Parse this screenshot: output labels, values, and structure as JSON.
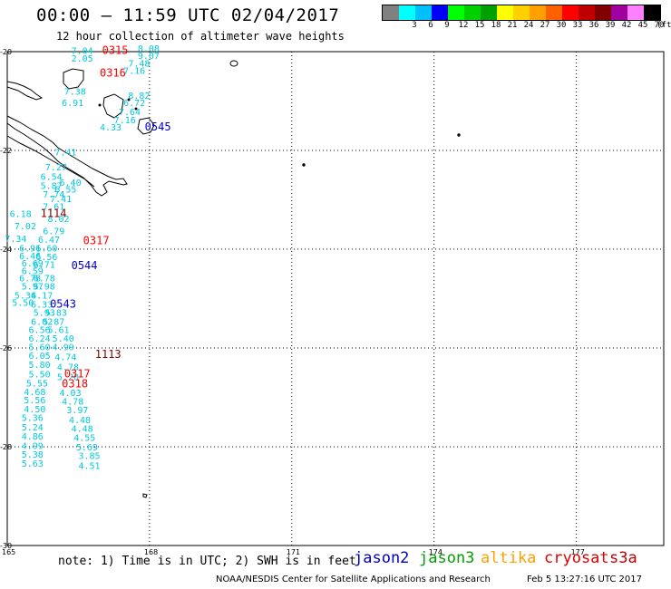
{
  "header": {
    "title": "00:00 – 11:59 UTC 02/04/2017",
    "subtitle": "12 hour collection of altimeter wave heights"
  },
  "scale": {
    "unit": "(ft)",
    "bins": [
      {
        "label": "",
        "color": "#808080"
      },
      {
        "label": "3",
        "color": "#00ffff"
      },
      {
        "label": "6",
        "color": "#00bfff"
      },
      {
        "label": "9",
        "color": "#0000ff"
      },
      {
        "label": "12",
        "color": "#00ff00"
      },
      {
        "label": "15",
        "color": "#00d000"
      },
      {
        "label": "18",
        "color": "#00a000"
      },
      {
        "label": "21",
        "color": "#ffff00"
      },
      {
        "label": "24",
        "color": "#ffd000"
      },
      {
        "label": "27",
        "color": "#ffa000"
      },
      {
        "label": "30",
        "color": "#ff6000"
      },
      {
        "label": "33",
        "color": "#ff0000"
      },
      {
        "label": "36",
        "color": "#c00000"
      },
      {
        "label": "39",
        "color": "#800000"
      },
      {
        "label": "42",
        "color": "#a000a0"
      },
      {
        "label": "45",
        "color": "#ff80ff"
      },
      {
        "label": "70",
        "color": "#000000"
      }
    ]
  },
  "axes": {
    "lon_labels": [
      "165",
      "168",
      "171",
      "174",
      "177"
    ],
    "lat_labels": [
      "-20",
      "-22",
      "-24",
      "-26",
      "-28",
      "-30"
    ]
  },
  "observations": [
    {
      "v": "7.04",
      "lon": 166.35,
      "lat": -20.05
    },
    {
      "v": "8.08",
      "lon": 167.75,
      "lat": -20.0
    },
    {
      "v": "9.07",
      "lon": 167.75,
      "lat": -20.15
    },
    {
      "v": "2.05",
      "lon": 166.35,
      "lat": -20.2
    },
    {
      "v": "7.48",
      "lon": 167.55,
      "lat": -20.3
    },
    {
      "v": "7.16",
      "lon": 167.45,
      "lat": -20.45
    },
    {
      "v": "7.38",
      "lon": 166.2,
      "lat": -20.87
    },
    {
      "v": "8.82",
      "lon": 167.55,
      "lat": -20.95
    },
    {
      "v": "6.91",
      "lon": 166.15,
      "lat": -21.1
    },
    {
      "v": "6.72",
      "lon": 167.45,
      "lat": -21.1
    },
    {
      "v": "7.64",
      "lon": 167.35,
      "lat": -21.28
    },
    {
      "v": "7.16",
      "lon": 167.25,
      "lat": -21.45
    },
    {
      "v": "4.33",
      "lon": 166.95,
      "lat": -21.6
    },
    {
      "v": "7.41",
      "lon": 166.0,
      "lat": -22.1
    },
    {
      "v": "7.27",
      "lon": 165.8,
      "lat": -22.4
    },
    {
      "v": "6.54",
      "lon": 165.7,
      "lat": -22.6
    },
    {
      "v": "6.40",
      "lon": 166.1,
      "lat": -22.72
    },
    {
      "v": "5.87",
      "lon": 165.7,
      "lat": -22.78
    },
    {
      "v": "6.55",
      "lon": 166.0,
      "lat": -22.85
    },
    {
      "v": "7.74",
      "lon": 165.75,
      "lat": -22.95
    },
    {
      "v": "7.41",
      "lon": 165.9,
      "lat": -23.05
    },
    {
      "v": "7.61",
      "lon": 165.75,
      "lat": -23.2
    },
    {
      "v": "6.18",
      "lon": 165.05,
      "lat": -23.35
    },
    {
      "v": "8.02",
      "lon": 165.85,
      "lat": -23.45
    },
    {
      "v": "7.02",
      "lon": 165.15,
      "lat": -23.6
    },
    {
      "v": "6.79",
      "lon": 165.75,
      "lat": -23.7
    },
    {
      "v": "7.34",
      "lon": 164.95,
      "lat": -23.85
    },
    {
      "v": "6.47",
      "lon": 165.65,
      "lat": -23.87
    },
    {
      "v": "6.91",
      "lon": 165.25,
      "lat": -24.05
    },
    {
      "v": "6.60",
      "lon": 165.6,
      "lat": -24.05
    },
    {
      "v": "6.46",
      "lon": 165.25,
      "lat": -24.2
    },
    {
      "v": "6.56",
      "lon": 165.6,
      "lat": -24.22
    },
    {
      "v": "6.69",
      "lon": 165.3,
      "lat": -24.35
    },
    {
      "v": "6.71",
      "lon": 165.55,
      "lat": -24.38
    },
    {
      "v": "6.59",
      "lon": 165.3,
      "lat": -24.5
    },
    {
      "v": "6.78",
      "lon": 165.25,
      "lat": -24.65
    },
    {
      "v": "6.78",
      "lon": 165.55,
      "lat": -24.65
    },
    {
      "v": "5.97",
      "lon": 165.3,
      "lat": -24.82
    },
    {
      "v": "5.98",
      "lon": 165.55,
      "lat": -24.82
    },
    {
      "v": "5.34",
      "lon": 165.15,
      "lat": -25.0
    },
    {
      "v": "6.17",
      "lon": 165.5,
      "lat": -25.0
    },
    {
      "v": "5.50",
      "lon": 165.1,
      "lat": -25.15
    },
    {
      "v": "6.33",
      "lon": 165.5,
      "lat": -25.18
    },
    {
      "v": "5.93",
      "lon": 165.55,
      "lat": -25.35
    },
    {
      "v": "5.83",
      "lon": 165.8,
      "lat": -25.35
    },
    {
      "v": "6.02",
      "lon": 165.5,
      "lat": -25.53
    },
    {
      "v": "5.87",
      "lon": 165.75,
      "lat": -25.53
    },
    {
      "v": "6.56",
      "lon": 165.45,
      "lat": -25.7
    },
    {
      "v": "5.61",
      "lon": 165.85,
      "lat": -25.7
    },
    {
      "v": "6.24",
      "lon": 165.45,
      "lat": -25.87
    },
    {
      "v": "5.40",
      "lon": 165.95,
      "lat": -25.87
    },
    {
      "v": "5.60",
      "lon": 165.45,
      "lat": -26.05
    },
    {
      "v": "4.99",
      "lon": 165.95,
      "lat": -26.05
    },
    {
      "v": "6.05",
      "lon": 165.45,
      "lat": -26.22
    },
    {
      "v": "4.74",
      "lon": 166.0,
      "lat": -26.25
    },
    {
      "v": "5.80",
      "lon": 165.45,
      "lat": -26.4
    },
    {
      "v": "4.78",
      "lon": 166.05,
      "lat": -26.45
    },
    {
      "v": "5.50",
      "lon": 165.45,
      "lat": -26.6
    },
    {
      "v": "5.20",
      "lon": 166.05,
      "lat": -26.65
    },
    {
      "v": "5.55",
      "lon": 165.4,
      "lat": -26.78
    },
    {
      "v": "4.68",
      "lon": 165.35,
      "lat": -26.95
    },
    {
      "v": "4.03",
      "lon": 166.1,
      "lat": -26.97
    },
    {
      "v": "5.56",
      "lon": 165.35,
      "lat": -27.12
    },
    {
      "v": "4.78",
      "lon": 166.15,
      "lat": -27.15
    },
    {
      "v": "4.50",
      "lon": 165.35,
      "lat": -27.3
    },
    {
      "v": "3.97",
      "lon": 166.25,
      "lat": -27.32
    },
    {
      "v": "5.36",
      "lon": 165.3,
      "lat": -27.48
    },
    {
      "v": "4.48",
      "lon": 166.3,
      "lat": -27.52
    },
    {
      "v": "5.24",
      "lon": 165.3,
      "lat": -27.67
    },
    {
      "v": "4.48",
      "lon": 166.35,
      "lat": -27.7
    },
    {
      "v": "4.86",
      "lon": 165.3,
      "lat": -27.85
    },
    {
      "v": "4.55",
      "lon": 166.4,
      "lat": -27.88
    },
    {
      "v": "4.99",
      "lon": 165.3,
      "lat": -28.05
    },
    {
      "v": "5.69",
      "lon": 166.45,
      "lat": -28.07
    },
    {
      "v": "5.38",
      "lon": 165.3,
      "lat": -28.22
    },
    {
      "v": "3.85",
      "lon": 166.5,
      "lat": -28.25
    },
    {
      "v": "5.63",
      "lon": 165.3,
      "lat": -28.4
    },
    {
      "v": "4.51",
      "lon": 166.5,
      "lat": -28.45
    }
  ],
  "passes": [
    {
      "time": "0315",
      "lon": 167.0,
      "lat": -20.05,
      "color": "#ff0000"
    },
    {
      "time": "0316",
      "lon": 166.95,
      "lat": -20.5,
      "color": "#ff0000"
    },
    {
      "time": "0545",
      "lon": 167.9,
      "lat": -21.6,
      "color": "#0000d0"
    },
    {
      "time": "1114",
      "lon": 165.7,
      "lat": -23.35,
      "color": "#800000"
    },
    {
      "time": "0317",
      "lon": 166.6,
      "lat": -23.9,
      "color": "#ff0000"
    },
    {
      "time": "0544",
      "lon": 166.35,
      "lat": -24.4,
      "color": "#0000d0"
    },
    {
      "time": "0543",
      "lon": 165.9,
      "lat": -25.18,
      "color": "#0000d0"
    },
    {
      "time": "1113",
      "lon": 166.85,
      "lat": -26.2,
      "color": "#800000"
    },
    {
      "time": "0317",
      "lon": 166.2,
      "lat": -26.6,
      "color": "#ff0000"
    },
    {
      "time": "0318",
      "lon": 166.15,
      "lat": -26.8,
      "color": "#ff0000"
    }
  ],
  "label_color": "#00c8e0",
  "footer": {
    "note": "note: 1) Time is in UTC; 2) SWH is in feet",
    "legend": [
      {
        "name": "jason2",
        "color": "#0000c0"
      },
      {
        "name": "jason3",
        "color": "#00a000"
      },
      {
        "name": "altika",
        "color": "#ffa000"
      },
      {
        "name": "cryosat",
        "color": "#e00000"
      },
      {
        "name": "s3a",
        "color": "#c00000"
      }
    ],
    "credit": "NOAA/NESDIS Center for Satellite Applications and Research",
    "timestamp": "Feb  5 13:27:16 UTC 2017"
  }
}
